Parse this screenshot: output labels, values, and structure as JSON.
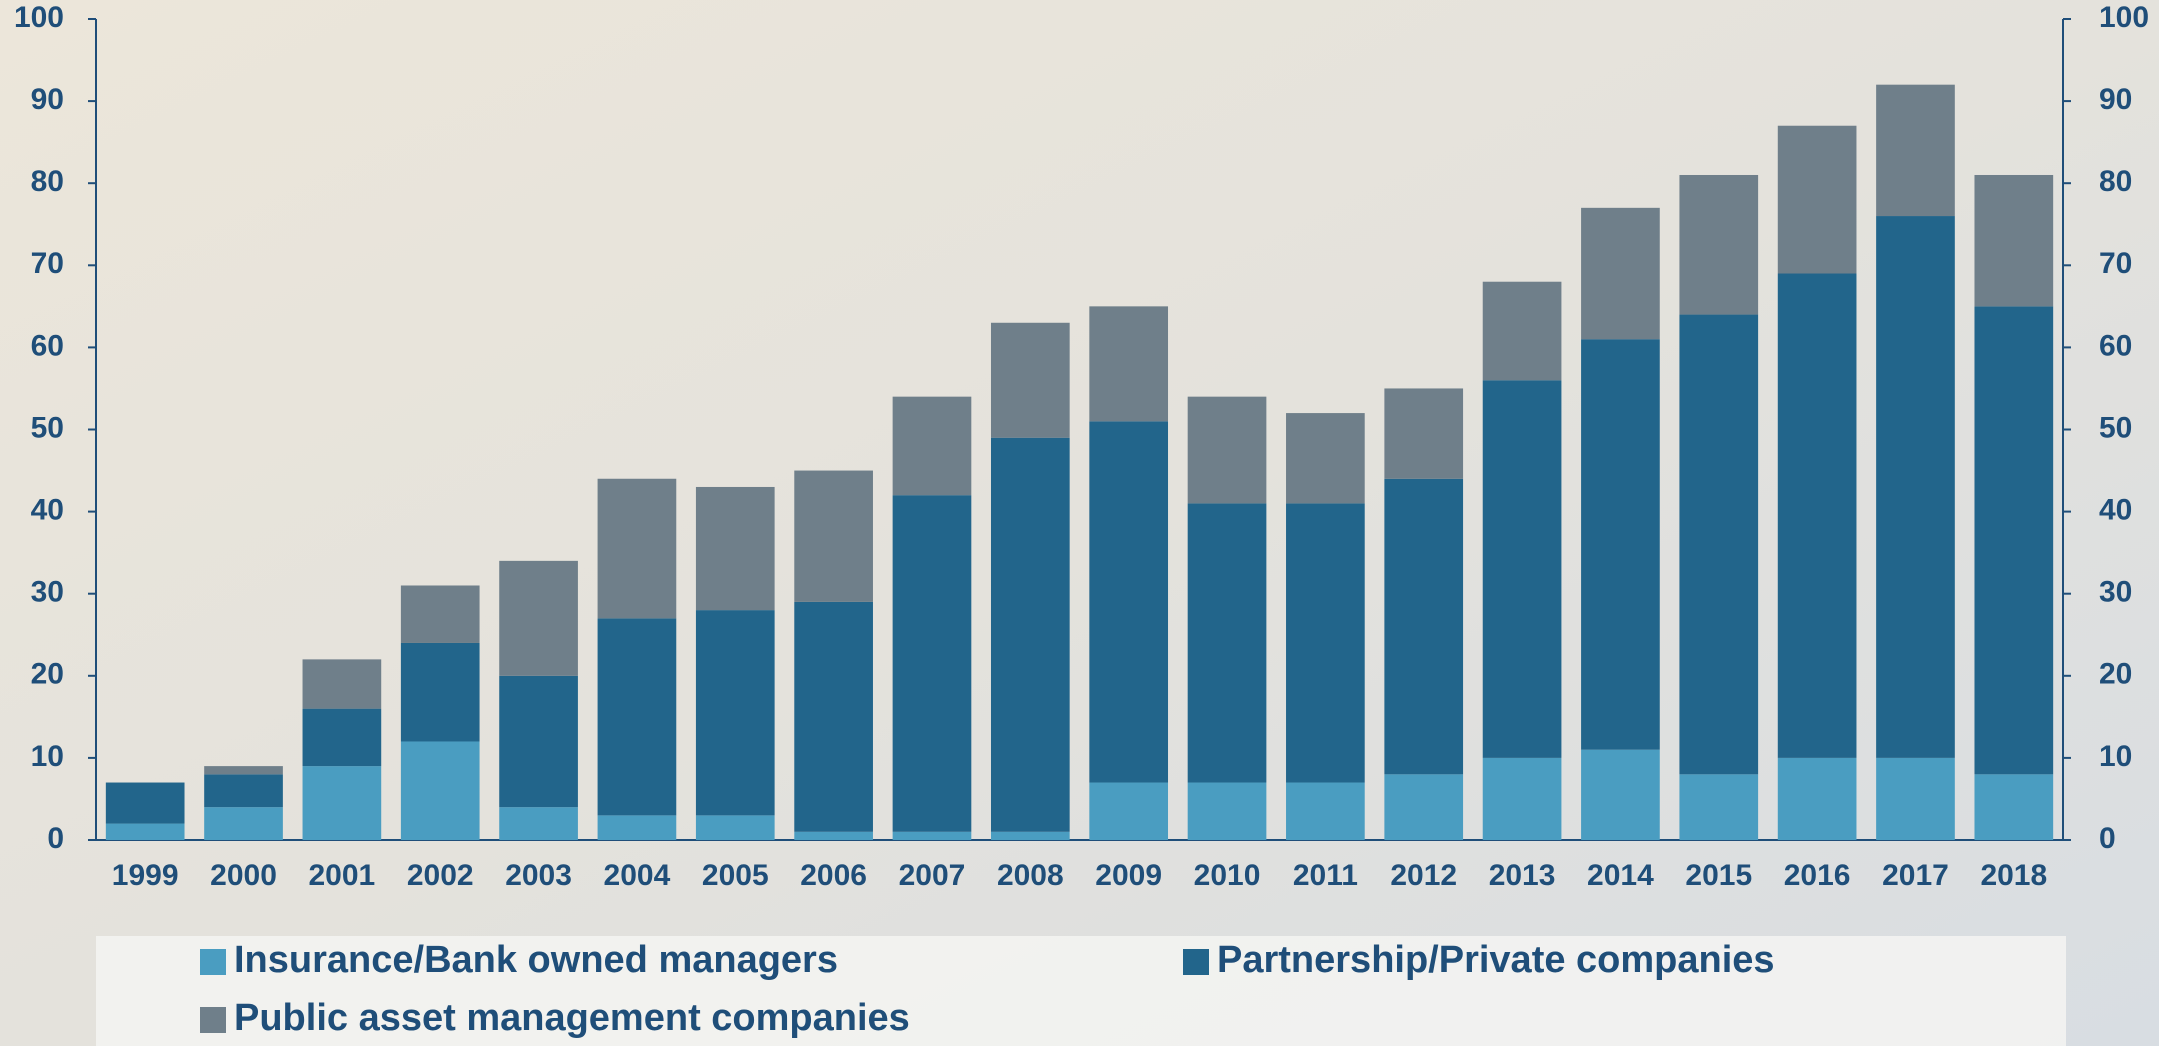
{
  "chart_data": {
    "type": "stacked-bar",
    "categories": [
      "1999",
      "2000",
      "2001",
      "2002",
      "2003",
      "2004",
      "2005",
      "2006",
      "2007",
      "2008",
      "2009",
      "2010",
      "2011",
      "2012",
      "2013",
      "2014",
      "2015",
      "2016",
      "2017",
      "2018"
    ],
    "series": [
      {
        "name": "Insurance/Bank owned managers",
        "color": "#4a9dc1",
        "values": [
          2,
          4,
          9,
          12,
          4,
          3,
          3,
          1,
          1,
          1,
          7,
          7,
          7,
          8,
          10,
          11,
          8,
          10,
          10,
          8
        ]
      },
      {
        "name": "Partnership/Private companies",
        "color": "#22658b",
        "values": [
          5,
          4,
          7,
          12,
          16,
          24,
          25,
          28,
          41,
          48,
          44,
          34,
          34,
          36,
          46,
          50,
          56,
          59,
          66,
          57
        ]
      },
      {
        "name": "Public asset management companies",
        "color": "#6f7f8a",
        "values": [
          0,
          1,
          6,
          7,
          14,
          17,
          15,
          16,
          12,
          14,
          14,
          13,
          11,
          11,
          12,
          16,
          17,
          18,
          16,
          16
        ]
      }
    ],
    "ylim": [
      0,
      100
    ],
    "yticks": [
      0,
      10,
      20,
      30,
      40,
      50,
      60,
      70,
      80,
      90,
      100
    ],
    "y2lim": [
      0,
      100
    ],
    "y2ticks": [
      0,
      10,
      20,
      30,
      40,
      50,
      60,
      70,
      80,
      90,
      100
    ],
    "grid": false,
    "legend": "bottom"
  }
}
